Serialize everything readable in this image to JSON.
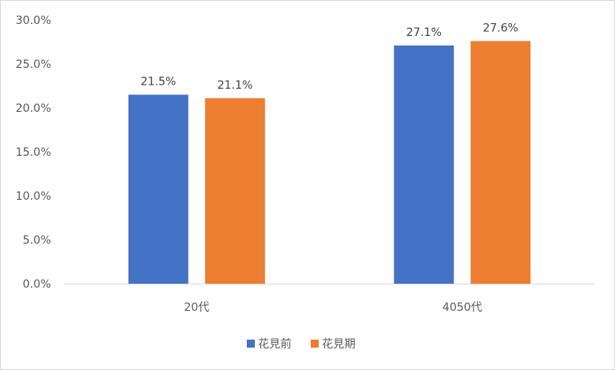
{
  "chart_data": {
    "type": "bar",
    "categories": [
      "20代",
      "4050代"
    ],
    "series": [
      {
        "name": "花見前",
        "values": [
          21.5,
          27.1
        ],
        "color": "#4472C4"
      },
      {
        "name": "花見期",
        "values": [
          21.1,
          27.6
        ],
        "color": "#ED7D31"
      }
    ],
    "data_labels": [
      [
        "21.5%",
        "27.1%"
      ],
      [
        "21.1%",
        "27.6%"
      ]
    ],
    "ylim": [
      0,
      30
    ],
    "y_ticks": [
      {
        "value": 0,
        "label": "0.0%"
      },
      {
        "value": 5,
        "label": "5.0%"
      },
      {
        "value": 10,
        "label": "10.0%"
      },
      {
        "value": 15,
        "label": "15.0%"
      },
      {
        "value": 20,
        "label": "20.0%"
      },
      {
        "value": 25,
        "label": "25.0%"
      },
      {
        "value": 30,
        "label": "30.0%"
      }
    ],
    "grid": false,
    "legend_position": "bottom",
    "title": "",
    "xlabel": "",
    "ylabel": ""
  }
}
